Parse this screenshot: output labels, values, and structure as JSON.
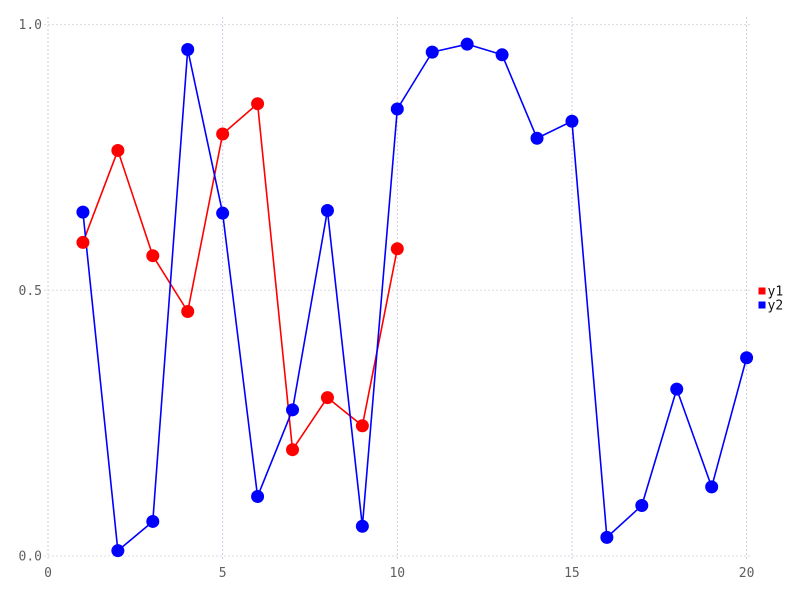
{
  "chart_data": {
    "type": "line",
    "title": "",
    "xlabel": "",
    "ylabel": "",
    "xlim": [
      0,
      21.5
    ],
    "ylim": [
      0,
      1.045
    ],
    "grid": "dotted",
    "x_ticks": {
      "values": [
        0,
        5,
        10,
        15,
        20
      ],
      "labels": [
        "0",
        "5",
        "10",
        "15",
        "20"
      ]
    },
    "y_ticks": {
      "values": [
        0,
        0.5,
        1
      ],
      "labels": [
        "0.0",
        "0.5",
        "1.0"
      ]
    },
    "series": [
      {
        "name": "y1",
        "color": "#ff0000",
        "x": [
          1,
          2,
          3,
          4,
          5,
          6,
          7,
          8,
          9,
          10
        ],
        "values": [
          0.59,
          0.763,
          0.565,
          0.46,
          0.794,
          0.851,
          0.2,
          0.298,
          0.245,
          0.578
        ]
      },
      {
        "name": "y2",
        "color": "#0000ff",
        "x": [
          1,
          2,
          3,
          4,
          5,
          6,
          7,
          8,
          9,
          10,
          11,
          12,
          13,
          14,
          15,
          16,
          17,
          18,
          19,
          20
        ],
        "values": [
          0.647,
          0.01,
          0.065,
          0.953,
          0.645,
          0.112,
          0.275,
          0.65,
          0.056,
          0.841,
          0.948,
          0.963,
          0.943,
          0.786,
          0.818,
          0.035,
          0.095,
          0.314,
          0.13,
          0.373
        ]
      }
    ],
    "legend": {
      "position": "right-center",
      "entries": [
        "y1",
        "y2"
      ]
    }
  },
  "colors": {
    "background": "#ffffff",
    "grid_horizontal": "#dcdcdc",
    "grid_vertical": "#ccccе6",
    "grid_vertical_fallback": "#cccce6",
    "tick_label": "#5f5f5f",
    "legend_text": "#111111",
    "series_y1": "#ff0000",
    "series_y2": "#0000ff"
  }
}
